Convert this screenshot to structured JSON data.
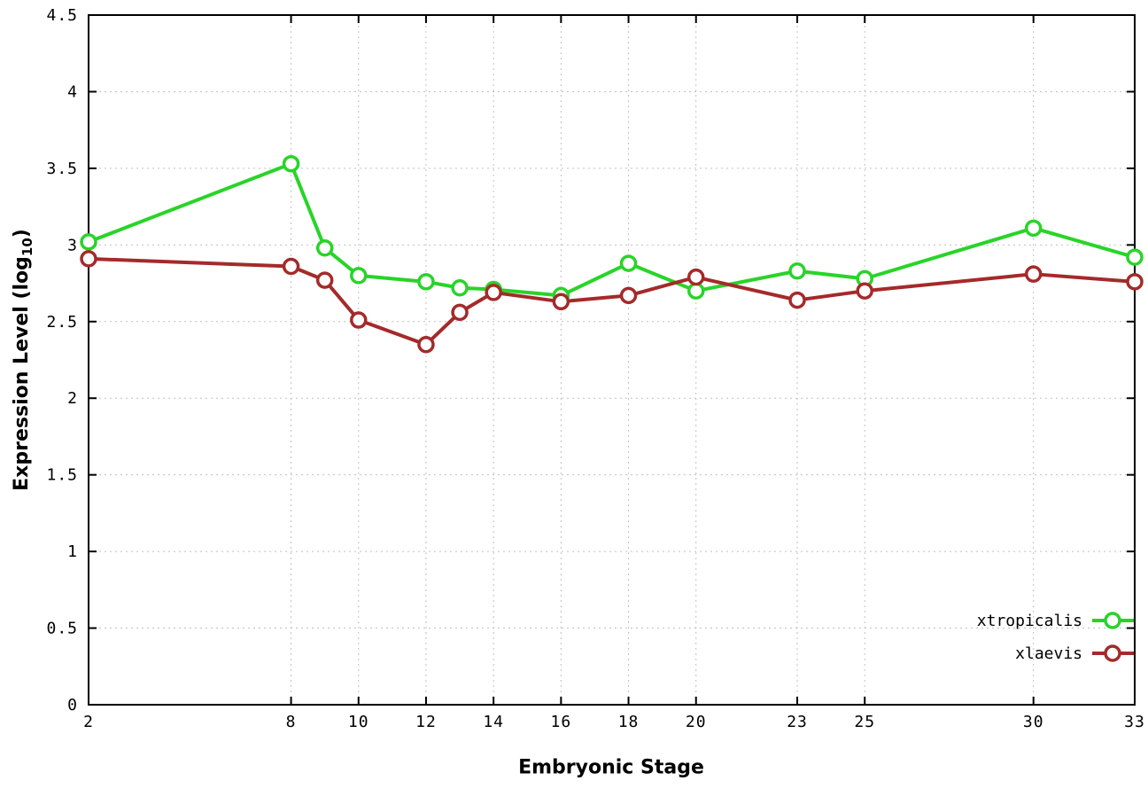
{
  "chart_data": {
    "type": "line",
    "xlabel": "Embryonic Stage",
    "ylabel_parts": {
      "pre": "Expression Level (log",
      "sub": "10",
      "post": ")"
    },
    "xlim": [
      2,
      33
    ],
    "ylim": [
      0,
      4.5
    ],
    "xticks": [
      2,
      8,
      10,
      12,
      14,
      16,
      18,
      20,
      23,
      25,
      30,
      33
    ],
    "yticks": [
      0,
      0.5,
      1,
      1.5,
      2,
      2.5,
      3,
      3.5,
      4,
      4.5
    ],
    "grid": true,
    "legend_position": "bottom-right",
    "x": [
      2,
      8,
      9,
      10,
      12,
      13,
      14,
      16,
      18,
      20,
      23,
      25,
      30,
      33
    ],
    "series": [
      {
        "name": "xtropicalis",
        "color": "#28d428",
        "values": [
          3.02,
          3.53,
          2.98,
          2.8,
          2.76,
          2.72,
          2.71,
          2.67,
          2.88,
          2.7,
          2.83,
          2.78,
          3.11,
          2.92
        ]
      },
      {
        "name": "xlaevis",
        "color": "#a42a2a",
        "values": [
          2.91,
          2.86,
          2.77,
          2.51,
          2.35,
          2.56,
          2.69,
          2.63,
          2.67,
          2.79,
          2.64,
          2.7,
          2.81,
          2.76
        ]
      }
    ],
    "colors": {
      "grid": "#c0c0c0",
      "axis": "#000000",
      "background": "#ffffff",
      "marker_fill": "#ffffff"
    }
  }
}
